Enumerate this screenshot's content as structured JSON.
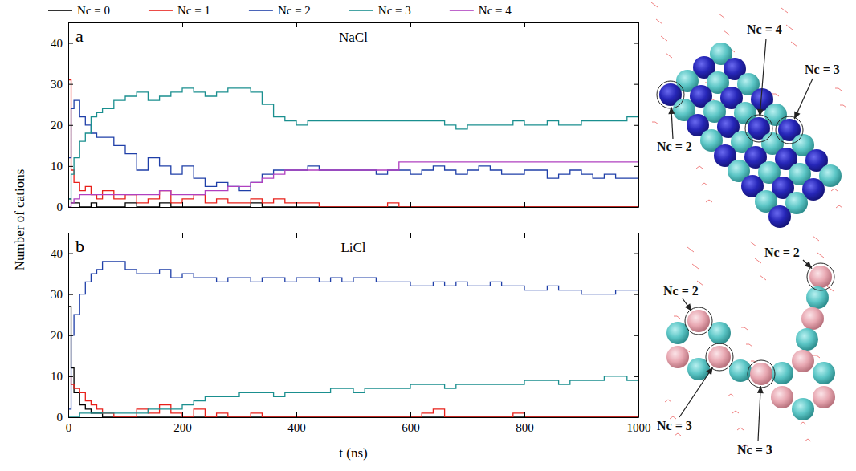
{
  "chart_data": [
    {
      "type": "line",
      "title": "NaCl",
      "panel_label": "a",
      "y_label": "Number of cations",
      "legend": "top",
      "tick_labels": "y",
      "xlim": [
        0,
        1000
      ],
      "xticks": [
        0,
        200,
        400,
        600,
        800,
        1000
      ],
      "ylim": [
        0,
        45
      ],
      "yticks": [
        0,
        10,
        20,
        30,
        40
      ],
      "x": [
        0,
        5,
        10,
        20,
        30,
        40,
        50,
        60,
        80,
        100,
        120,
        140,
        160,
        180,
        200,
        220,
        240,
        260,
        280,
        300,
        320,
        340,
        360,
        380,
        400,
        420,
        440,
        460,
        480,
        500,
        520,
        540,
        560,
        580,
        600,
        620,
        640,
        660,
        680,
        700,
        720,
        740,
        760,
        780,
        800,
        820,
        840,
        860,
        880,
        900,
        920,
        940,
        960,
        980,
        1000
      ],
      "series": [
        {
          "name": "Nc = 0",
          "color": "#000000",
          "values": [
            2,
            1,
            1,
            0,
            0,
            1,
            0,
            0,
            0,
            1,
            0,
            0,
            1,
            0,
            0,
            0,
            0,
            0,
            0,
            0,
            1,
            0,
            0,
            0,
            0,
            0,
            0,
            0,
            0,
            0,
            0,
            0,
            0,
            0,
            0,
            0,
            0,
            0,
            0,
            0,
            0,
            0,
            0,
            0,
            0,
            0,
            0,
            0,
            0,
            0,
            0,
            0,
            0,
            0,
            0
          ]
        },
        {
          "name": "Nc = 1",
          "color": "#e8201a",
          "values": [
            31,
            9,
            6,
            4,
            5,
            3,
            2,
            4,
            2,
            3,
            1,
            2,
            4,
            1,
            2,
            3,
            1,
            2,
            1,
            1,
            2,
            1,
            2,
            1,
            1,
            1,
            0,
            0,
            0,
            0,
            0,
            0,
            1,
            0,
            0,
            0,
            0,
            0,
            0,
            0,
            0,
            0,
            0,
            0,
            0,
            0,
            0,
            0,
            0,
            0,
            0,
            0,
            0,
            0,
            0
          ]
        },
        {
          "name": "Nc = 2",
          "color": "#1f3fa8",
          "values": [
            12,
            24,
            26,
            22,
            20,
            18,
            17,
            17,
            15,
            13,
            9,
            12,
            10,
            8,
            10,
            7,
            5,
            6,
            5,
            4,
            6,
            8,
            9,
            9,
            9,
            10,
            9,
            9,
            9,
            9,
            9,
            8,
            9,
            9,
            8,
            9,
            10,
            9,
            8,
            9,
            10,
            9,
            8,
            8,
            9,
            9,
            7,
            8,
            9,
            8,
            7,
            8,
            7,
            7,
            7
          ]
        },
        {
          "name": "Nc = 3",
          "color": "#1a8f8f",
          "values": [
            2,
            8,
            12,
            16,
            18,
            22,
            23,
            24,
            26,
            27,
            28,
            26,
            27,
            28,
            29,
            28,
            27,
            28,
            29,
            29,
            28,
            25,
            22,
            21,
            20,
            21,
            21,
            21,
            21,
            21,
            21,
            21,
            21,
            21,
            21,
            21,
            21,
            20,
            19,
            20,
            20,
            20,
            20,
            21,
            20,
            20,
            21,
            20,
            20,
            21,
            21,
            21,
            21,
            22,
            21
          ]
        },
        {
          "name": "Nc = 4",
          "color": "#b040c0",
          "values": [
            0,
            1,
            2,
            3,
            3,
            3,
            3,
            3,
            3,
            3,
            3,
            3,
            4,
            3,
            3,
            3,
            4,
            4,
            5,
            5,
            6,
            7,
            8,
            9,
            9,
            9,
            9,
            9,
            9,
            9,
            9,
            9,
            9,
            11,
            11,
            11,
            11,
            11,
            11,
            11,
            11,
            11,
            11,
            11,
            11,
            11,
            11,
            11,
            11,
            11,
            11,
            11,
            11,
            11,
            11
          ]
        }
      ]
    },
    {
      "type": "line",
      "title": "LiCl",
      "panel_label": "b",
      "x_label": "t (ns)",
      "xlim": [
        0,
        1000
      ],
      "xticks": [
        0,
        200,
        400,
        600,
        800,
        1000
      ],
      "ylim": [
        0,
        45
      ],
      "yticks": [
        0,
        10,
        20,
        30,
        40
      ],
      "x": [
        0,
        5,
        10,
        20,
        30,
        40,
        50,
        60,
        80,
        100,
        120,
        140,
        160,
        180,
        200,
        220,
        240,
        260,
        280,
        300,
        320,
        340,
        360,
        380,
        400,
        420,
        440,
        460,
        480,
        500,
        520,
        540,
        560,
        580,
        600,
        620,
        640,
        660,
        680,
        700,
        720,
        740,
        760,
        780,
        800,
        820,
        840,
        860,
        880,
        900,
        920,
        940,
        960,
        980,
        1000
      ],
      "series": [
        {
          "color": "#000000",
          "values": [
            27,
            12,
            6,
            3,
            2,
            1,
            1,
            0,
            0,
            0,
            0,
            0,
            0,
            0,
            0,
            0,
            0,
            0,
            0,
            0,
            0,
            0,
            0,
            0,
            0,
            0,
            0,
            0,
            0,
            0,
            0,
            0,
            0,
            0,
            0,
            0,
            0,
            0,
            0,
            0,
            0,
            0,
            0,
            0,
            0,
            0,
            0,
            0,
            0,
            0,
            0,
            0,
            0,
            0,
            0
          ]
        },
        {
          "color": "#e8201a",
          "values": [
            10,
            8,
            7,
            6,
            4,
            3,
            2,
            1,
            0,
            0,
            2,
            1,
            3,
            1,
            0,
            2,
            0,
            1,
            0,
            0,
            1,
            0,
            0,
            0,
            0,
            0,
            0,
            0,
            0,
            0,
            0,
            0,
            0,
            0,
            0,
            1,
            2,
            0,
            0,
            0,
            0,
            0,
            0,
            1,
            0,
            0,
            0,
            0,
            0,
            0,
            0,
            0,
            0,
            0,
            0
          ]
        },
        {
          "color": "#1f3fa8",
          "values": [
            2,
            20,
            25,
            30,
            33,
            35,
            36,
            38,
            38,
            36,
            35,
            35,
            36,
            34,
            35,
            34,
            34,
            33,
            34,
            34,
            33,
            34,
            34,
            33,
            34,
            34,
            33,
            34,
            33,
            34,
            34,
            33,
            33,
            33,
            32,
            32,
            33,
            32,
            33,
            32,
            32,
            33,
            32,
            32,
            31,
            31,
            32,
            31,
            31,
            30,
            30,
            30,
            31,
            31,
            31
          ]
        },
        {
          "color": "#1a8f8f",
          "values": [
            0,
            0,
            0,
            1,
            1,
            1,
            1,
            1,
            1,
            1,
            1,
            2,
            2,
            2,
            3,
            4,
            5,
            5,
            5,
            6,
            6,
            6,
            5,
            6,
            6,
            6,
            6,
            7,
            7,
            6,
            7,
            7,
            7,
            7,
            8,
            8,
            8,
            7,
            8,
            8,
            8,
            8,
            8,
            8,
            9,
            9,
            9,
            8,
            9,
            9,
            9,
            10,
            10,
            9,
            10
          ]
        }
      ]
    }
  ],
  "snapshots": [
    {
      "annotations": [
        "Nc = 4",
        "Nc = 3",
        "Nc = 2"
      ]
    },
    {
      "annotations": [
        "Nc = 2",
        "Nc = 2",
        "Nc = 3",
        "Nc = 3"
      ]
    }
  ]
}
